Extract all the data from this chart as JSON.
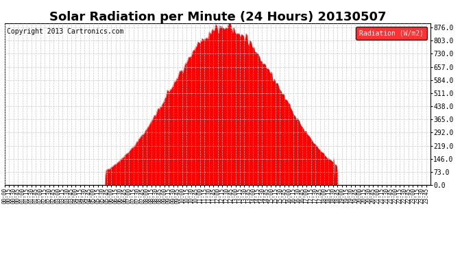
{
  "title": "Solar Radiation per Minute (24 Hours) 20130507",
  "copyright_text": "Copyright 2013 Cartronics.com",
  "legend_label": "Radiation (W/m2)",
  "y_ticks": [
    0.0,
    73.0,
    146.0,
    219.0,
    292.0,
    365.0,
    438.0,
    511.0,
    584.0,
    657.0,
    730.0,
    803.0,
    876.0
  ],
  "ylim": [
    0.0,
    900.0
  ],
  "fill_color": "#FF0000",
  "line_color": "#CC0000",
  "background_color": "#FFFFFF",
  "grid_color": "#C8C8C8",
  "legend_bg": "#FF0000",
  "legend_text_color": "#FFFFFF",
  "title_fontsize": 13,
  "copyright_fontsize": 7,
  "tick_fontsize": 5.5,
  "ytick_fontsize": 7,
  "peak_minute": 745,
  "sigma": 185,
  "peak_value": 876.0,
  "sunrise_minute": 340,
  "sunset_minute": 1125
}
